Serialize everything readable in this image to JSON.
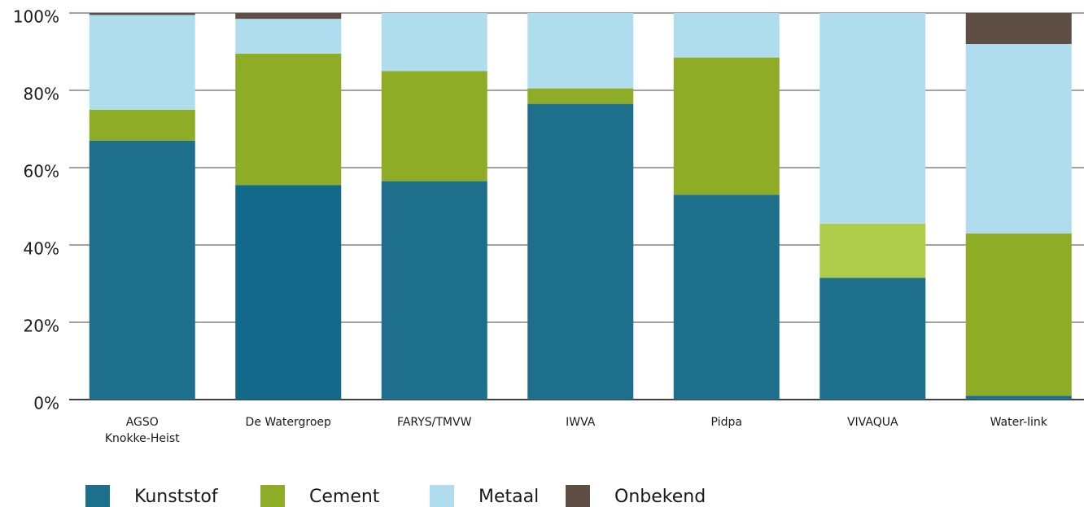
{
  "chart_data": {
    "type": "stacked_bar",
    "categories": [
      "AGSO\nKnokke-Heist",
      "De Watergroep",
      "FARYS/TMVW",
      "IWVA",
      "Pidpa",
      "VIVAQUA",
      "Water-link"
    ],
    "series": [
      {
        "name": "Kunststof",
        "color": "#1d6f8c",
        "colors": [
          "#1d6f8c",
          "#13698a",
          "#1d6f8c",
          "#1d6f8c",
          "#1d6f8c",
          "#1d6f8c",
          "#1d6f8c"
        ],
        "values": [
          67,
          55.5,
          56.5,
          76.5,
          53,
          31.5,
          1
        ]
      },
      {
        "name": "Cement",
        "color": "#8fac27",
        "colors": [
          "#8fac27",
          "#8fac27",
          "#8fac27",
          "#8fac27",
          "#8fac27",
          "#afcb4a",
          "#8fac27"
        ],
        "values": [
          8,
          34,
          28.5,
          4,
          35.5,
          14,
          42
        ]
      },
      {
        "name": "Metaal",
        "color": "#b0ddee",
        "colors": [
          "#b0ddee",
          "#b0ddee",
          "#b0ddee",
          "#b0ddee",
          "#b0ddee",
          "#b0ddee",
          "#b0ddee"
        ],
        "values": [
          24.5,
          9,
          15,
          19.5,
          11.5,
          54.5,
          49
        ]
      },
      {
        "name": "Onbekend",
        "color": "#5e4e43",
        "colors": [
          "#5e4e43",
          "#5e4e43",
          "#5e4e43",
          "#5e4e43",
          "#5e4e43",
          "#5e4e43",
          "#5e4e43"
        ],
        "values": [
          0.5,
          1.5,
          0,
          0,
          0,
          0,
          8
        ]
      }
    ],
    "ylim": [
      0,
      100
    ],
    "yticks": [
      {
        "value": 0,
        "label": "0%"
      },
      {
        "value": 20,
        "label": "20%"
      },
      {
        "value": 40,
        "label": "40%"
      },
      {
        "value": 60,
        "label": "60%"
      },
      {
        "value": 80,
        "label": "80%"
      },
      {
        "value": 100,
        "label": "100%"
      }
    ],
    "grid": true,
    "legend": "bottom-left"
  }
}
